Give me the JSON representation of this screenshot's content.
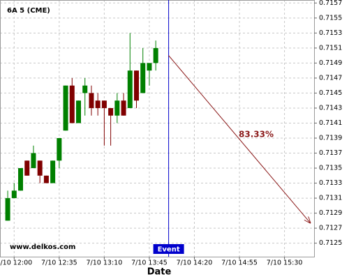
{
  "chart_data": {
    "type": "candlestick",
    "title": "6A 5 (CME)",
    "watermark": "www.delkos.com",
    "xlabel": "Date",
    "x": [
      715,
      720,
      725,
      730,
      735,
      740,
      745,
      750,
      755,
      760,
      765,
      770,
      775,
      780,
      785,
      790,
      795,
      800,
      805,
      810,
      815,
      820,
      825,
      830
    ],
    "open": [
      0.7128,
      0.7131,
      0.7132,
      0.7136,
      0.7135,
      0.7136,
      0.7134,
      0.7133,
      0.7136,
      0.714,
      0.7146,
      0.7141,
      0.7145,
      0.7145,
      0.7144,
      0.7144,
      0.7143,
      0.7142,
      0.7144,
      0.7143,
      0.7148,
      0.7145,
      0.7148,
      0.7149
    ],
    "high": [
      0.7132,
      0.7133,
      0.7135,
      0.7136,
      0.7138,
      0.7136,
      0.7134,
      0.7136,
      0.7139,
      0.7146,
      0.7147,
      0.7144,
      0.7147,
      0.7146,
      0.7145,
      0.7144,
      0.7143,
      0.7145,
      0.7145,
      0.7153,
      0.7148,
      0.7151,
      0.7149,
      0.7152
    ],
    "low": [
      0.7128,
      0.7131,
      0.7132,
      0.7134,
      0.7135,
      0.7133,
      0.7133,
      0.7133,
      0.7135,
      0.714,
      0.7141,
      0.7141,
      0.7142,
      0.7142,
      0.7142,
      0.7138,
      0.7138,
      0.7141,
      0.7142,
      0.7143,
      0.7143,
      0.7145,
      0.7146,
      0.7148
    ],
    "close": [
      0.7131,
      0.7132,
      0.7135,
      0.7134,
      0.7137,
      0.7134,
      0.7133,
      0.7136,
      0.7139,
      0.7146,
      0.7141,
      0.7144,
      0.7146,
      0.7143,
      0.7143,
      0.7143,
      0.7142,
      0.7144,
      0.7142,
      0.7148,
      0.7144,
      0.7149,
      0.7149,
      0.7151
    ],
    "up_color": "#008000",
    "down_color": "#800000",
    "xlim": [
      709,
      953
    ],
    "xticks": [
      {
        "value": 720,
        "label": "7/10 12:00"
      },
      {
        "value": 755,
        "label": "7/10 12:35"
      },
      {
        "value": 790,
        "label": "7/10 13:10"
      },
      {
        "value": 825,
        "label": "7/10 13:45"
      },
      {
        "value": 860,
        "label": "7/10 14:20"
      },
      {
        "value": 895,
        "label": "7/10 14:55"
      },
      {
        "value": 930,
        "label": "7/10 15:30"
      }
    ],
    "ylim": [
      0.71232,
      0.71574
    ],
    "yticks": [
      0.7125,
      0.7127,
      0.7129,
      0.7131,
      0.7133,
      0.7135,
      0.7137,
      0.7139,
      0.7141,
      0.7143,
      0.7145,
      0.7147,
      0.7149,
      0.7151,
      0.7153,
      0.7155,
      0.7157
    ],
    "grid": true,
    "event": {
      "x": 840,
      "label": "Event",
      "color": "#0000cc"
    },
    "projection": {
      "x": [
        840,
        950
      ],
      "y": [
        0.715,
        0.71277
      ],
      "label": "83.33%",
      "color": "#8b1a1a"
    }
  }
}
